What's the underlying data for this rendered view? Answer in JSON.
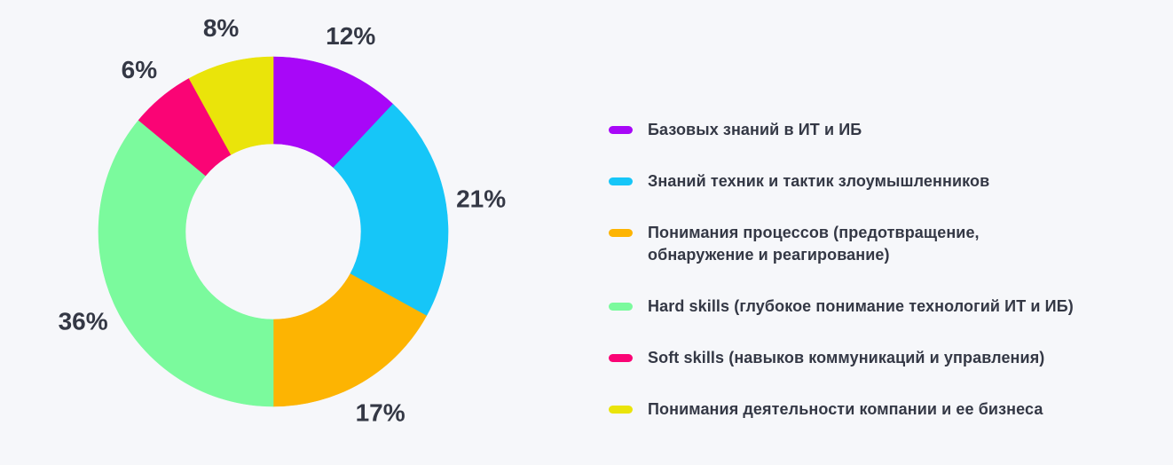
{
  "chart_data": {
    "type": "pie",
    "subtype": "donut",
    "title": "",
    "categories": [
      "Базовых знаний в ИТ и ИБ",
      "Знаний техник и тактик злоумышленников",
      "Понимания процессов (предотвращение, обнаружение и реагирование)",
      "Hard skills (глубокое понимание технологий ИТ и ИБ)",
      "Soft skills (навыков коммуникаций и управления)",
      "Понимания деятельности компании и ее бизнеса"
    ],
    "values": [
      12,
      21,
      17,
      36,
      6,
      8
    ],
    "value_labels": [
      "12%",
      "21%",
      "17%",
      "36%",
      "6%",
      "8%"
    ],
    "unit": "%",
    "colors": [
      "#A807F8",
      "#16C6F8",
      "#FDB402",
      "#7BFA9D",
      "#FA0475",
      "#EAE40A"
    ],
    "start_angle_deg": 0,
    "direction": "clockwise",
    "donut_hole_ratio": 0.5,
    "legend_position": "right",
    "background_color": "#F6F7FA",
    "label_color": "#343845"
  }
}
